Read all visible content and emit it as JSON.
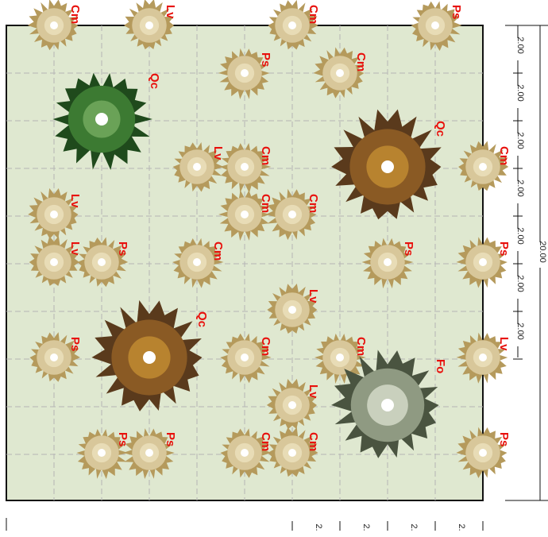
{
  "plants": [
    "Cm",
    "Lv",
    "Cm",
    "Ps",
    "Qc",
    "Ps",
    "Cm",
    "Qc",
    "Cm",
    "Lv",
    "Cm",
    "Cm",
    "Cm",
    "Lv",
    "Lv",
    "Ps",
    "Cm",
    "Ps",
    "Ps",
    "Qc",
    "Lv",
    "Ps",
    "Cm",
    "Cm",
    "Lv",
    "Fo",
    "Lv",
    "Cm",
    "Cm",
    "Ps",
    "Ps",
    "Ps"
  ],
  "dimensions": {
    "right_segments": [
      "2.00",
      "2.00",
      "2.00",
      "2.00",
      "2.00",
      "2.00",
      "2.00"
    ],
    "total": "20.00",
    "bottom_segments": [
      "2.",
      "2.",
      "2.",
      "2."
    ]
  }
}
